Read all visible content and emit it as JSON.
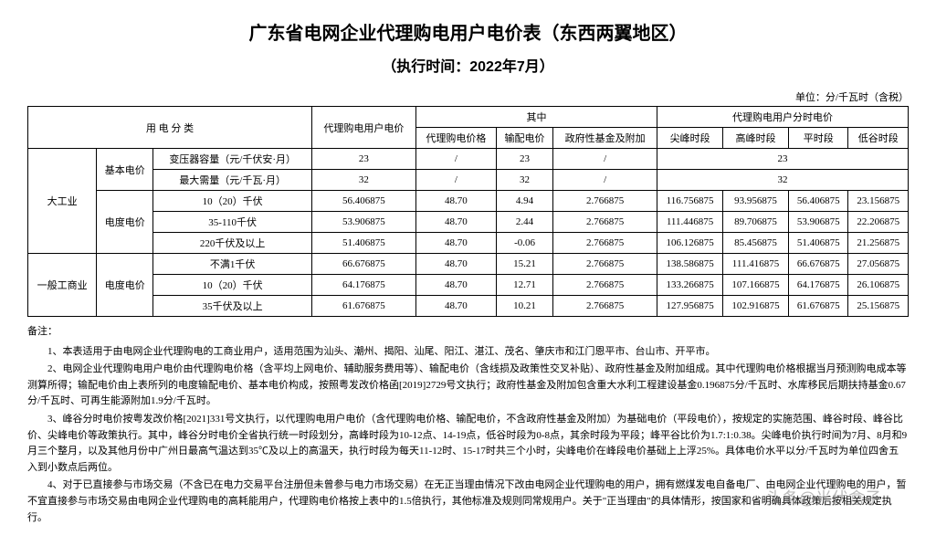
{
  "title": "广东省电网企业代理购电用户电价表（东西两翼地区）",
  "subtitle": "（执行时间：2022年7月）",
  "unit": "单位：分/千瓦时（含税）",
  "headers": {
    "category": "用 电 分 类",
    "agent_price": "代理购电用户电价",
    "among": "其中",
    "agent_purchase": "代理购电价格",
    "transmission": "输配电价",
    "gov_fund": "政府性基金及附加",
    "time_price": "代理购电用户分时电价",
    "peak": "尖峰时段",
    "high": "高峰时段",
    "flat": "平时段",
    "low": "低谷时段"
  },
  "cat_large": "大工业",
  "cat_general": "一般工商业",
  "basic_price": "基本电价",
  "energy_price": "电度电价",
  "rows": {
    "transformer": {
      "label": "变压器容量（元/千伏安·月）",
      "v1": "23",
      "v2": "/",
      "v3": "23",
      "v4": "/",
      "merged": "23"
    },
    "max_demand": {
      "label": "最大需量（元/千瓦·月）",
      "v1": "32",
      "v2": "/",
      "v3": "32",
      "v4": "/",
      "merged": "32"
    },
    "r1": {
      "label": "10（20）千伏",
      "v1": "56.406875",
      "v2": "48.70",
      "v3": "4.94",
      "v4": "2.766875",
      "p": "116.756875",
      "h": "93.956875",
      "f": "56.406875",
      "l": "23.156875"
    },
    "r2": {
      "label": "35-110千伏",
      "v1": "53.906875",
      "v2": "48.70",
      "v3": "2.44",
      "v4": "2.766875",
      "p": "111.446875",
      "h": "89.706875",
      "f": "53.906875",
      "l": "22.206875"
    },
    "r3": {
      "label": "220千伏及以上",
      "v1": "51.406875",
      "v2": "48.70",
      "v3": "-0.06",
      "v4": "2.766875",
      "p": "106.126875",
      "h": "85.456875",
      "f": "51.406875",
      "l": "21.256875"
    },
    "r4": {
      "label": "不满1千伏",
      "v1": "66.676875",
      "v2": "48.70",
      "v3": "15.21",
      "v4": "2.766875",
      "p": "138.586875",
      "h": "111.416875",
      "f": "66.676875",
      "l": "27.056875"
    },
    "r5": {
      "label": "10（20）千伏",
      "v1": "64.176875",
      "v2": "48.70",
      "v3": "12.71",
      "v4": "2.766875",
      "p": "133.266875",
      "h": "107.166875",
      "f": "64.176875",
      "l": "26.106875"
    },
    "r6": {
      "label": "35千伏及以上",
      "v1": "61.676875",
      "v2": "48.70",
      "v3": "10.21",
      "v4": "2.766875",
      "p": "127.956875",
      "h": "102.916875",
      "f": "61.676875",
      "l": "25.156875"
    }
  },
  "notes_title": "备注：",
  "notes": [
    "1、本表适用于由电网企业代理购电的工商业用户，适用范围为汕头、潮州、揭阳、汕尾、阳江、湛江、茂名、肇庆市和江门恩平市、台山市、开平市。",
    "2、电网企业代理购电用户电价由代理购电价格（含平均上网电价、辅助服务费用等）、输配电价（含线损及政策性交叉补贴）、政府性基金及附加组成。其中代理购电价格根据当月预测购电成本等测算所得；输配电价由上表所列的电度输配电价、基本电价构成，按照粤发改价格函[2019]2729号文执行；政府性基金及附加包含重大水利工程建设基金0.196875分/千瓦时、水库移民后期扶持基金0.67分/千瓦时、可再生能源附加1.9分/千瓦时。",
    "3、峰谷分时电价按粤发改价格[2021]331号文执行，以代理购电用户电价（含代理购电价格、输配电价，不含政府性基金及附加）为基础电价（平段电价），按规定的实施范围、峰谷时段、峰谷比价、尖峰电价等政策执行。其中，峰谷分时电价全省执行统一时段划分，高峰时段为10-12点、14-19点，低谷时段为0-8点，其余时段为平段；峰平谷比价为1.7:1:0.38。尖峰电价执行时间为7月、8月和9月三个整月，以及其他月份中广州日最高气温达到35℃及以上的高温天，执行时段为每天11-12时、15-17时共三个小时，尖峰电价在峰段电价基础上上浮25%。具体电价水平以分/千瓦时为单位四舍五入到小数点后两位。",
    "4、对于已直接参与市场交易（不含已在电力交易平台注册但未曾参与电力市场交易）在无正当理由情况下改由电网企业代理购电的用户，拥有燃煤发电自备电厂、由电网企业代理购电的用户，暂不宜直接参与市场交易由电网企业代理购电的高耗能用户，代理购电价格按上表中的1.5倍执行，其他标准及规则同常规用户。关于\"正当理由\"的具体情形，按国家和省明确具体政策后按相关规定执行。"
  ],
  "watermark": "头条@光伏盒子"
}
